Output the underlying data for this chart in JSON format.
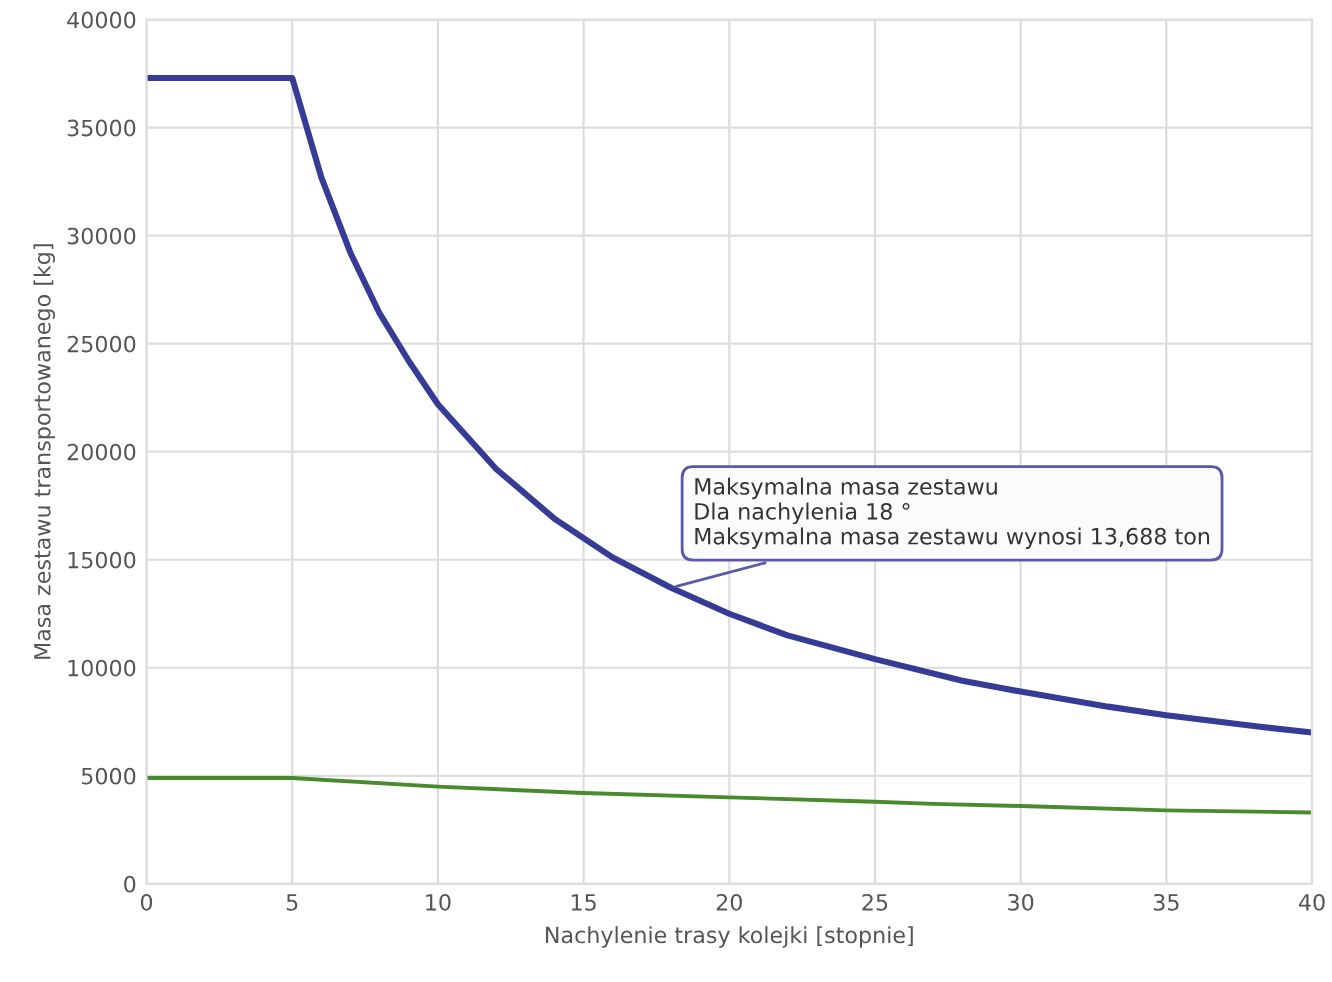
{
  "chart_data": {
    "type": "line",
    "xlabel": "Nachylenie trasy kolejki [stopnie]",
    "ylabel": "Masa zestawu transportowanego [kg]",
    "series": [
      {
        "color": "#363c96",
        "x": [
          0,
          5,
          6,
          7,
          8,
          9,
          10,
          12,
          14,
          16,
          18,
          20,
          22,
          25,
          28,
          30,
          33,
          35,
          38,
          40
        ],
        "values": [
          37300,
          37300,
          32700,
          29200,
          26400,
          24200,
          22200,
          19200,
          16900,
          15100,
          13700,
          12500,
          11500,
          10400,
          9400,
          8900,
          8200,
          7800,
          7300,
          7000
        ]
      },
      {
        "color": "#4a8a2e",
        "x": [
          0,
          5,
          10,
          15,
          20,
          25,
          27,
          30,
          35,
          40
        ],
        "values": [
          4900,
          4900,
          4500,
          4200,
          4000,
          3800,
          3700,
          3600,
          3400,
          3300
        ]
      }
    ],
    "annotations": [
      {
        "text": "Maksymalna masa zestawu\nDla nachylenia 18 °\nMaksymalna masa zestawu wynosi 13,688 ton",
        "x": 18,
        "y": 13700
      }
    ],
    "xlim": [
      0,
      40
    ],
    "ylim": [
      0,
      40000
    ],
    "xticks": [
      0,
      5,
      10,
      15,
      20,
      25,
      30,
      35,
      40
    ],
    "yticks": [
      0,
      5000,
      10000,
      15000,
      20000,
      25000,
      30000,
      35000,
      40000
    ],
    "grid": true,
    "marker": "none",
    "line_style": "solid"
  }
}
